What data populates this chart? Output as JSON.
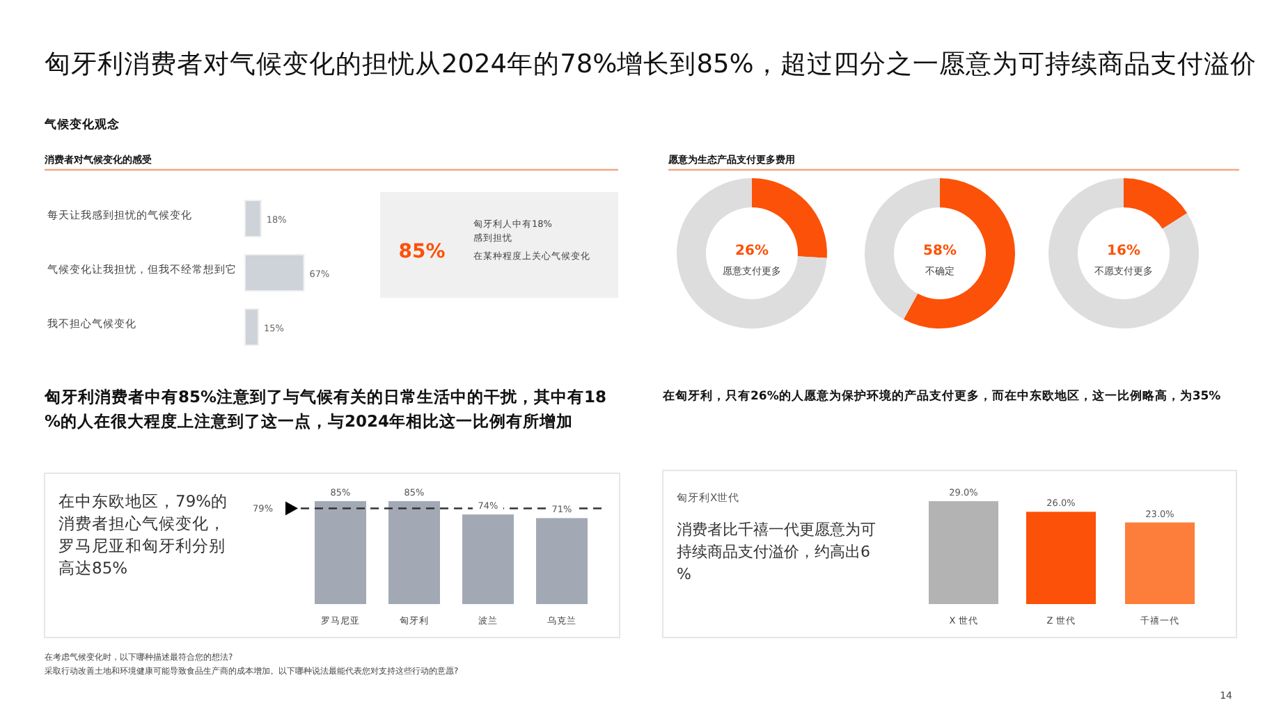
{
  "chart_data": [
    {
      "type": "other",
      "title": "匈牙利消费者对气候变化的担忧从2024年的78%增长到85%，超过四分之一愿意为可持续商品支付溢价",
      "subtitle": "气候变化观念",
      "annotations": [
        "消费者对气候变化的感受",
        "愿意为生态产品支付更多费用",
        "在考虑气候变化时，以下哪种描述最符合您的想法?",
        "采取行动改善土地和环境健康可能导致食品生产商的成本增加。以下哪种说法最能代表您对支持这些行动的意愿?",
        "14"
      ]
    },
    {
      "type": "bar",
      "orientation": "horizontal",
      "categories": [
        "每天让我感到担忧的气候变化",
        "气候变化让我担忧，但我不经常想到它",
        "我不担心气候变化"
      ],
      "values": [
        18,
        67,
        15
      ],
      "value_labels": [
        "18%",
        "67%",
        "15%"
      ],
      "color": "#cdd3d8"
    },
    {
      "type": "other",
      "title": "85%",
      "annotations": [
        "匈牙利人中有18%",
        "感到担忧",
        "在某种程度上关心气候变化"
      ]
    },
    {
      "type": "donut",
      "categories": [
        "愿意支付更多",
        null
      ],
      "values": [
        26,
        74
      ],
      "value_labels": [
        "26%",
        null
      ],
      "colors": [
        "#fc5108",
        "#dddddd"
      ]
    },
    {
      "type": "donut",
      "categories": [
        "不确定",
        null
      ],
      "values": [
        58,
        42
      ],
      "value_labels": [
        "58%",
        null
      ],
      "colors": [
        "#fc5108",
        "#dddddd"
      ]
    },
    {
      "type": "donut",
      "categories": [
        "不愿支付更多",
        null
      ],
      "values": [
        16,
        84
      ],
      "value_labels": [
        "16%",
        null
      ],
      "colors": [
        "#fc5108",
        "#dddddd"
      ]
    },
    {
      "type": "bar",
      "title": "匈牙利消费者中有85%注意到了与气候有关的日常生活中的干扰，其中有18%的人在很大程度上注意到了这一点，与2024年相比这一比例有所增加",
      "subtitle": "在中东欧地区，79%的消费者担心气候变化，罗马尼亚和匈牙利分别高达85%",
      "categories": [
        "罗马尼亚",
        "匈牙利",
        "波兰",
        "乌克兰"
      ],
      "values": [
        85,
        85,
        74,
        71
      ],
      "value_labels": [
        "85%",
        "85%",
        "74%",
        "71%"
      ],
      "color": "#a2a9b4",
      "ref_lines": [
        {
          "axis": "y",
          "value": 79,
          "label": "79%",
          "line_style": "dashed",
          "color": "#333333"
        }
      ]
    },
    {
      "type": "bar",
      "title": "在匈牙利，只有26%的人愿意为保护环境的产品支付更多，而在中东欧地区，这一比例略高，为35%",
      "annotations": [
        "匈牙利X世代",
        "消费者比千禧一代更愿意为可持续商品支付溢价，约高出6%"
      ],
      "categories": [
        "X 世代",
        "Z 世代",
        "千禧一代"
      ],
      "values": [
        29,
        26,
        23
      ],
      "value_labels": [
        "29.0%",
        "26.0%",
        "23.0%"
      ],
      "colors": [
        "#b3b3b3",
        "#fc5108",
        "#fd7e3a"
      ]
    }
  ]
}
